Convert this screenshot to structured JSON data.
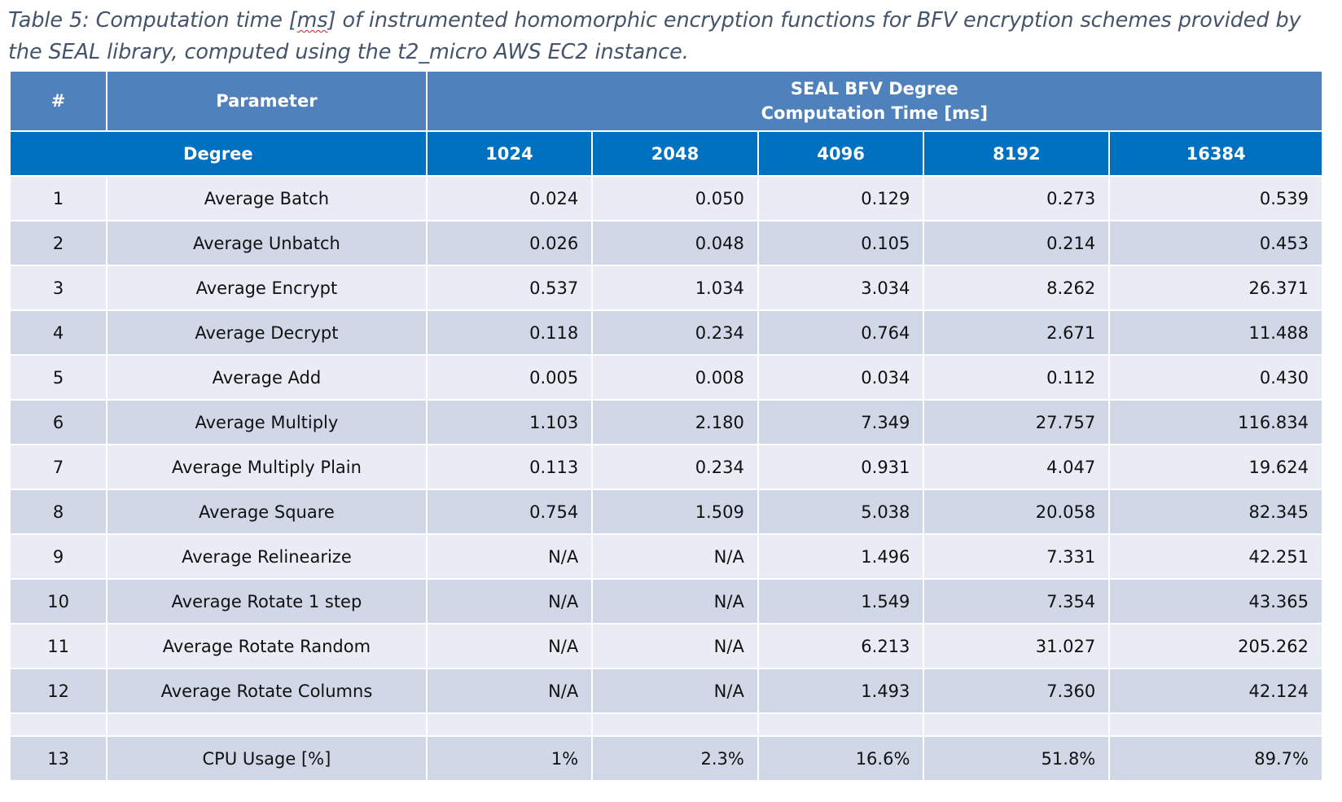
{
  "caption": {
    "before": "Table 5: Computation time [",
    "ms": "ms",
    "after": "] of instrumented homomorphic encryption functions for BFV encryption schemes provided by the SEAL library, computed using the t2_micro AWS EC2 instance."
  },
  "table": {
    "header": {
      "num": "#",
      "parameter": "Parameter",
      "group_line1": "SEAL BFV Degree",
      "group_line2": "Computation Time [ms]"
    },
    "degree_row": {
      "label": "Degree",
      "degrees": [
        "1024",
        "2048",
        "4096",
        "8192",
        "16384"
      ]
    },
    "rows": [
      {
        "num": "1",
        "param": "Average Batch",
        "v": [
          "0.024",
          "0.050",
          "0.129",
          "0.273",
          "0.539"
        ]
      },
      {
        "num": "2",
        "param": "Average Unbatch",
        "v": [
          "0.026",
          "0.048",
          "0.105",
          "0.214",
          "0.453"
        ]
      },
      {
        "num": "3",
        "param": "Average Encrypt",
        "v": [
          "0.537",
          "1.034",
          "3.034",
          "8.262",
          "26.371"
        ]
      },
      {
        "num": "4",
        "param": "Average Decrypt",
        "v": [
          "0.118",
          "0.234",
          "0.764",
          "2.671",
          "11.488"
        ]
      },
      {
        "num": "5",
        "param": "Average Add",
        "v": [
          "0.005",
          "0.008",
          "0.034",
          "0.112",
          "0.430"
        ]
      },
      {
        "num": "6",
        "param": "Average Multiply",
        "v": [
          "1.103",
          "2.180",
          "7.349",
          "27.757",
          "116.834"
        ]
      },
      {
        "num": "7",
        "param": "Average Multiply Plain",
        "v": [
          "0.113",
          "0.234",
          "0.931",
          "4.047",
          "19.624"
        ]
      },
      {
        "num": "8",
        "param": "Average Square",
        "v": [
          "0.754",
          "1.509",
          "5.038",
          "20.058",
          "82.345"
        ]
      },
      {
        "num": "9",
        "param": "Average Relinearize",
        "v": [
          "N/A",
          "N/A",
          "1.496",
          "7.331",
          "42.251"
        ]
      },
      {
        "num": "10",
        "param": "Average Rotate 1 step",
        "v": [
          "N/A",
          "N/A",
          "1.549",
          "7.354",
          "43.365"
        ]
      },
      {
        "num": "11",
        "param": "Average Rotate Random",
        "v": [
          "N/A",
          "N/A",
          "6.213",
          "31.027",
          "205.262"
        ]
      },
      {
        "num": "12",
        "param": "Average Rotate Columns",
        "v": [
          "N/A",
          "N/A",
          "1.493",
          "7.360",
          "42.124"
        ]
      }
    ],
    "cpu_row": {
      "num": "13",
      "param": "CPU Usage [%]",
      "v": [
        "1%",
        "2.3%",
        "16.6%",
        "51.8%",
        "89.7%"
      ]
    }
  },
  "colors": {
    "header_top": "#4f81bd",
    "header_degree": "#0070c0",
    "row_light": "#e9ecf4",
    "row_dark": "#d0d8e8",
    "caption_text": "#44546a"
  }
}
